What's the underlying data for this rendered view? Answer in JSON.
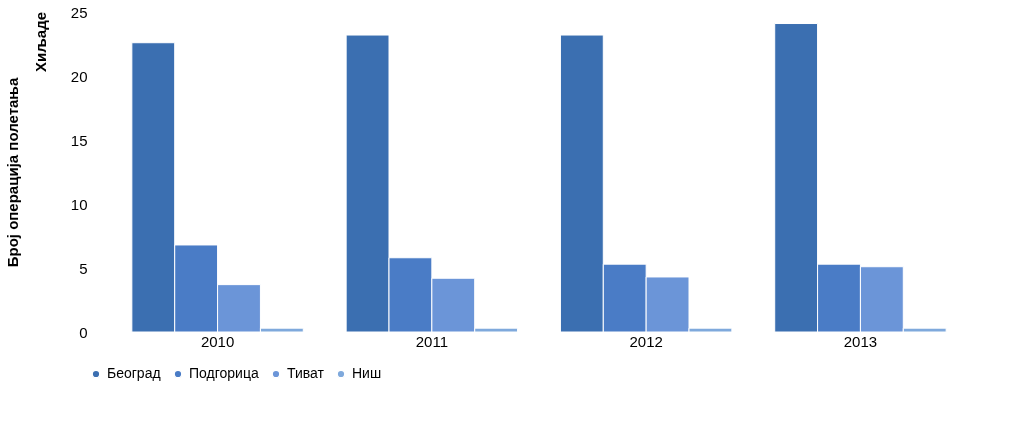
{
  "chart_data": {
    "type": "bar",
    "ylabel": "Број операција полетања",
    "annotations": [
      "Хиљаде"
    ],
    "categories": [
      "2010",
      "2011",
      "2012",
      "2013"
    ],
    "series": [
      {
        "name": "Београд",
        "color": "#3b6fb1",
        "values": [
          22.6,
          23.2,
          23.2,
          24.1
        ]
      },
      {
        "name": "Подгорица",
        "color": "#4a7cc6",
        "values": [
          6.8,
          5.8,
          5.3,
          5.3
        ]
      },
      {
        "name": "Тиват",
        "color": "#6b95d8",
        "values": [
          3.7,
          4.2,
          4.3,
          5.1
        ]
      },
      {
        "name": "Ниш",
        "color": "#7fa9dc",
        "values": [
          0.3,
          0.3,
          0.3,
          0.3
        ]
      }
    ],
    "ylim": [
      0,
      25
    ],
    "yticks": [
      0,
      5,
      10,
      15,
      20,
      25
    ],
    "grid": false,
    "legend": "bottom"
  }
}
